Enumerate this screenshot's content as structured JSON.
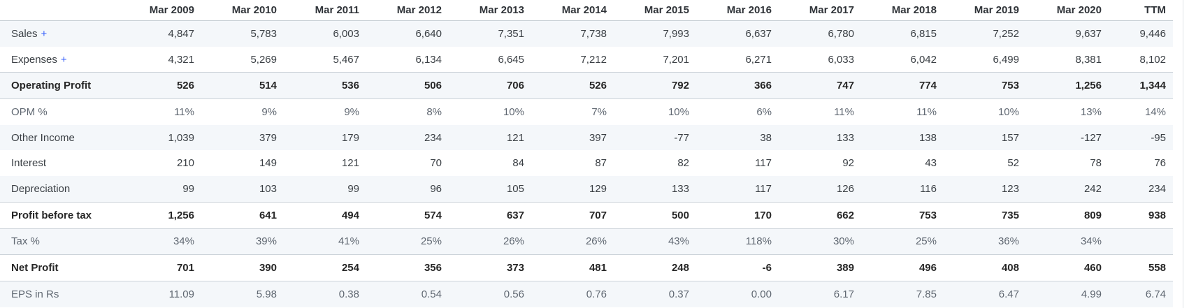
{
  "colors": {
    "accent_link": "#3861fb",
    "row_stripe": "#f4f7fa",
    "strong_border": "#ccd3d9"
  },
  "table": {
    "columns": [
      "",
      "Mar 2009",
      "Mar 2010",
      "Mar 2011",
      "Mar 2012",
      "Mar 2013",
      "Mar 2014",
      "Mar 2015",
      "Mar 2016",
      "Mar 2017",
      "Mar 2018",
      "Mar 2019",
      "Mar 2020",
      "TTM"
    ],
    "rows": [
      {
        "label": "Sales",
        "expand": "+",
        "emphasis": "normal",
        "values": [
          "4,847",
          "5,783",
          "6,003",
          "6,640",
          "7,351",
          "7,738",
          "7,993",
          "6,637",
          "6,780",
          "6,815",
          "7,252",
          "9,637",
          "9,446"
        ]
      },
      {
        "label": "Expenses",
        "expand": "+",
        "emphasis": "normal",
        "values": [
          "4,321",
          "5,269",
          "5,467",
          "6,134",
          "6,645",
          "7,212",
          "7,201",
          "6,271",
          "6,033",
          "6,042",
          "6,499",
          "8,381",
          "8,102"
        ]
      },
      {
        "label": "Operating Profit",
        "emphasis": "strong",
        "values": [
          "526",
          "514",
          "536",
          "506",
          "706",
          "526",
          "792",
          "366",
          "747",
          "774",
          "753",
          "1,256",
          "1,344"
        ]
      },
      {
        "label": "OPM %",
        "emphasis": "muted",
        "values": [
          "11%",
          "9%",
          "9%",
          "8%",
          "10%",
          "7%",
          "10%",
          "6%",
          "11%",
          "11%",
          "10%",
          "13%",
          "14%"
        ]
      },
      {
        "label": "Other Income",
        "emphasis": "normal",
        "values": [
          "1,039",
          "379",
          "179",
          "234",
          "121",
          "397",
          "-77",
          "38",
          "133",
          "138",
          "157",
          "-127",
          "-95"
        ]
      },
      {
        "label": "Interest",
        "emphasis": "normal",
        "values": [
          "210",
          "149",
          "121",
          "70",
          "84",
          "87",
          "82",
          "117",
          "92",
          "43",
          "52",
          "78",
          "76"
        ]
      },
      {
        "label": "Depreciation",
        "emphasis": "normal",
        "values": [
          "99",
          "103",
          "99",
          "96",
          "105",
          "129",
          "133",
          "117",
          "126",
          "116",
          "123",
          "242",
          "234"
        ]
      },
      {
        "label": "Profit before tax",
        "emphasis": "strong",
        "values": [
          "1,256",
          "641",
          "494",
          "574",
          "637",
          "707",
          "500",
          "170",
          "662",
          "753",
          "735",
          "809",
          "938"
        ]
      },
      {
        "label": "Tax %",
        "emphasis": "muted",
        "values": [
          "34%",
          "39%",
          "41%",
          "25%",
          "26%",
          "26%",
          "43%",
          "118%",
          "30%",
          "25%",
          "36%",
          "34%",
          ""
        ]
      },
      {
        "label": "Net Profit",
        "emphasis": "strong",
        "values": [
          "701",
          "390",
          "254",
          "356",
          "373",
          "481",
          "248",
          "-6",
          "389",
          "496",
          "408",
          "460",
          "558"
        ]
      },
      {
        "label": "EPS in Rs",
        "emphasis": "muted",
        "values": [
          "11.09",
          "5.98",
          "0.38",
          "0.54",
          "0.56",
          "0.76",
          "0.37",
          "0.00",
          "6.17",
          "7.85",
          "6.47",
          "4.99",
          "6.74"
        ]
      }
    ]
  }
}
